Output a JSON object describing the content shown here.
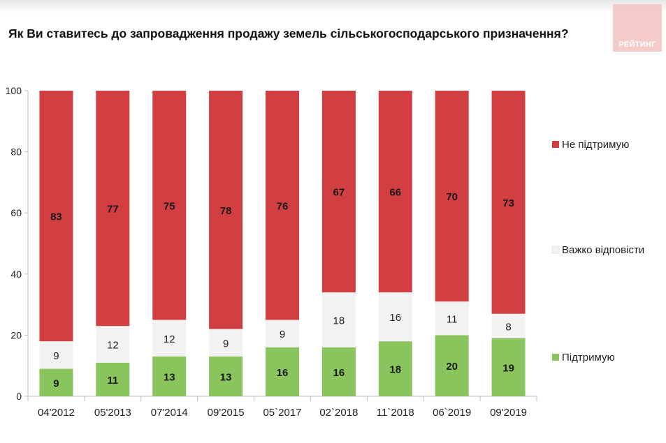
{
  "title": "Як Ви ставитесь до запровадження продажу земель сільськогосподарського призначення?",
  "logo_text": "РЕЙТИНГ",
  "colors": {
    "oppose": "#d23f43",
    "hard": "#f2f2f2",
    "support": "#8ac45c",
    "logo": "#f4c3c1"
  },
  "chart_data": {
    "type": "bar",
    "stacked": true,
    "categories": [
      "04'2012",
      "05'2013",
      "07'2014",
      "09'2015",
      "05`2017",
      "02`2018",
      "11`2018",
      "06`2019",
      "09'2019"
    ],
    "series": [
      {
        "name": "Підтримую",
        "values": [
          9,
          11,
          13,
          13,
          16,
          16,
          18,
          20,
          19
        ]
      },
      {
        "name": "Важко відповісти",
        "values": [
          9,
          12,
          12,
          9,
          9,
          18,
          16,
          11,
          8
        ]
      },
      {
        "name": "Не підтримую",
        "values": [
          83,
          77,
          75,
          78,
          76,
          67,
          66,
          70,
          73
        ]
      }
    ],
    "ylim": [
      0,
      100
    ],
    "yticks": [
      0,
      20,
      40,
      60,
      80,
      100
    ],
    "legend_position": "right",
    "grid": false
  }
}
